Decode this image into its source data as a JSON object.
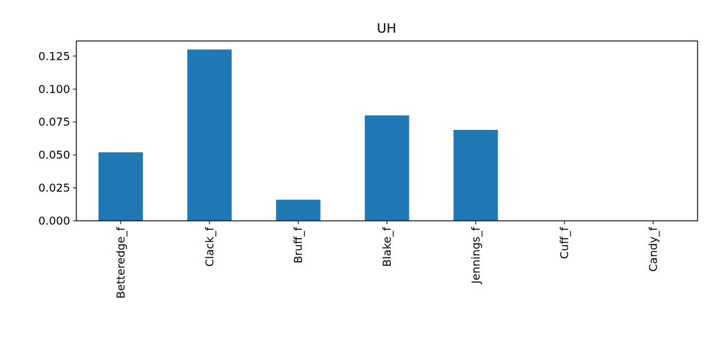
{
  "chart_data": {
    "type": "bar",
    "title": "UH",
    "xlabel": "",
    "ylabel": "",
    "categories": [
      "Betteredge_f",
      "Clack_f",
      "Bruff_f",
      "Blake_f",
      "Jennings_f",
      "Cuff_f",
      "Candy_f"
    ],
    "values": [
      0.052,
      0.13,
      0.016,
      0.08,
      0.069,
      0.0,
      0.0
    ],
    "ylim": [
      0,
      0.1365
    ],
    "yticks": [
      "0.000",
      "0.025",
      "0.050",
      "0.075",
      "0.100",
      "0.125"
    ],
    "ytick_values": [
      0,
      0.025,
      0.05,
      0.075,
      0.1,
      0.125
    ],
    "bar_color": "#1f77b4",
    "grid": false,
    "legend": "none"
  }
}
